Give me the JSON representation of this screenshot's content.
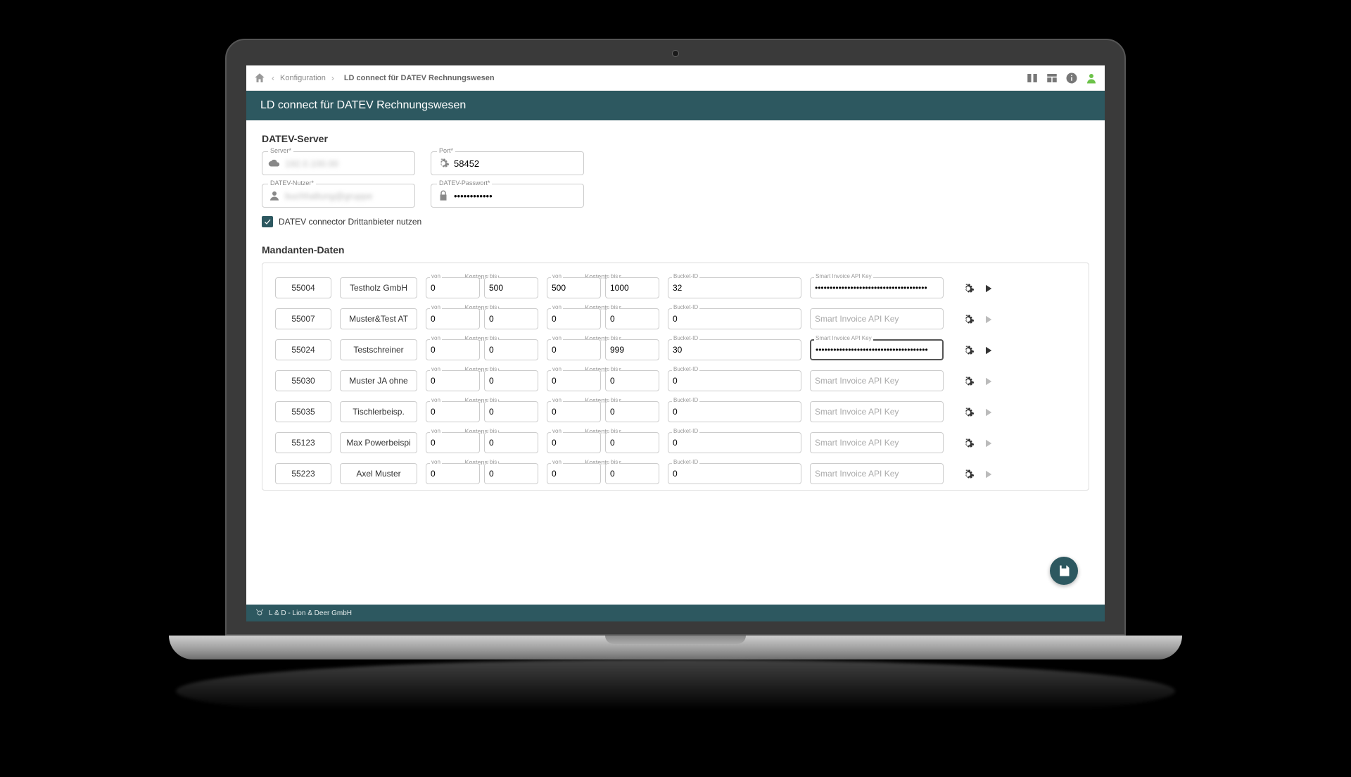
{
  "colors": {
    "brand": "#2d5860",
    "accent": "#6cc24a"
  },
  "breadcrumb": {
    "level1": "Konfiguration",
    "level2": "LD connect für DATEV Rechnungswesen"
  },
  "page_title": "LD connect für DATEV Rechnungswesen",
  "section_server": {
    "heading": "DATEV-Server",
    "server_label": "Server*",
    "server_value": "192.0.100.00",
    "port_label": "Port*",
    "port_value": "58452",
    "user_label": "DATEV-Nutzer*",
    "user_value": "buchhaltung@gruppe",
    "pass_label": "DATEV-Passwort*",
    "pass_value": "••••••••••••",
    "checkbox_label": "DATEV connector Drittanbieter nutzen",
    "checkbox_checked": true
  },
  "section_clients": {
    "heading": "Mandanten-Daten",
    "col_kostenstelle": "Kostenstelle",
    "col_kostentraeger": "Kostenträger",
    "label_von": "von",
    "label_bis": "bis",
    "label_bucket": "Bucket-ID",
    "label_apikey": "Smart Invoice API Key",
    "api_placeholder": "Smart Invoice API Key",
    "rows": [
      {
        "id": "55004",
        "name": "Testholz GmbH",
        "ks_von": "0",
        "ks_bis": "500",
        "kt_von": "500",
        "kt_bis": "1000",
        "bucket": "32",
        "api": "••••••••••••••••••••••••••••••••••••••",
        "play_active": true,
        "api_focus": false
      },
      {
        "id": "55007",
        "name": "Muster&Test AT",
        "ks_von": "0",
        "ks_bis": "0",
        "kt_von": "0",
        "kt_bis": "0",
        "bucket": "0",
        "api": "",
        "play_active": false,
        "api_focus": false
      },
      {
        "id": "55024",
        "name": "Testschreiner",
        "ks_von": "0",
        "ks_bis": "0",
        "kt_von": "0",
        "kt_bis": "999",
        "bucket": "30",
        "api": "••••••••••••••••••••••••••••••••••••••",
        "play_active": true,
        "api_focus": true
      },
      {
        "id": "55030",
        "name": "Muster JA ohne",
        "ks_von": "0",
        "ks_bis": "0",
        "kt_von": "0",
        "kt_bis": "0",
        "bucket": "0",
        "api": "",
        "play_active": false,
        "api_focus": false
      },
      {
        "id": "55035",
        "name": "Tischlerbeisp.",
        "ks_von": "0",
        "ks_bis": "0",
        "kt_von": "0",
        "kt_bis": "0",
        "bucket": "0",
        "api": "",
        "play_active": false,
        "api_focus": false
      },
      {
        "id": "55123",
        "name": "Max Powerbeispi",
        "ks_von": "0",
        "ks_bis": "0",
        "kt_von": "0",
        "kt_bis": "0",
        "bucket": "0",
        "api": "",
        "play_active": false,
        "api_focus": false
      },
      {
        "id": "55223",
        "name": "Axel Muster",
        "ks_von": "0",
        "ks_bis": "0",
        "kt_von": "0",
        "kt_bis": "0",
        "bucket": "0",
        "api": "",
        "play_active": false,
        "api_focus": false
      }
    ]
  },
  "footer_text": "L & D - Lion & Deer GmbH"
}
